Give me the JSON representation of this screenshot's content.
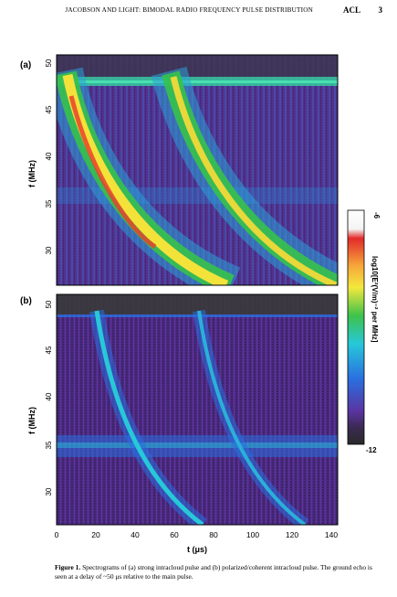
{
  "header": {
    "running_title": "JACOBSON AND LIGHT: BIMODAL RADIO FREQUENCY PULSE DISTRIBUTION",
    "journal": "ACL",
    "page_number": "3"
  },
  "panels": [
    {
      "label": "(a)",
      "ylabel": "f (MHz)",
      "y_ticks": [
        "30",
        "35",
        "40",
        "45",
        "50"
      ]
    },
    {
      "label": "(b)",
      "ylabel": "f (MHz)",
      "y_ticks": [
        "30",
        "35",
        "40",
        "45",
        "50"
      ]
    }
  ],
  "x_axis": {
    "label": "t (μs)",
    "ticks": [
      "0",
      "20",
      "40",
      "60",
      "80",
      "100",
      "120",
      "140"
    ]
  },
  "colorbar": {
    "label": "log10[E²(V/m)⁻² per MHz]",
    "top_value": "-6",
    "bottom_value": "-12"
  },
  "caption": {
    "figure_label": "Figure 1.",
    "text": "Spectrograms of (a) strong intracloud pulse and (b) polarized/coherent intracloud pulse. The ground echo is seen at a delay of ~50 μs relative to the main pulse."
  },
  "colors": {
    "background_purple": "#55308f",
    "blue": "#2a78e0",
    "cyan": "#27c8d8",
    "green": "#36c24a",
    "yellow": "#f3e23a",
    "red": "#e8222a"
  }
}
